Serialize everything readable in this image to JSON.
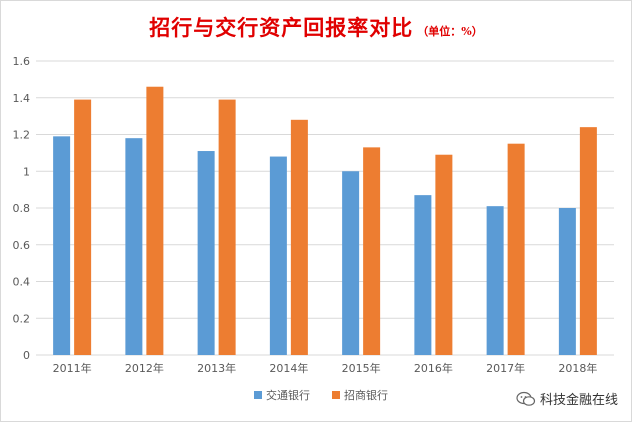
{
  "title": "招行与交行资产回报率对比",
  "unit_note": "（单位：%）",
  "watermark": "科技金融在线",
  "colors": {
    "series1": "#5b9bd5",
    "series2": "#ed7d31",
    "grid": "#d9d9d9",
    "axis_text": "#595959",
    "title": "#e00000"
  },
  "chart_data": {
    "type": "bar",
    "title": "招行与交行资产回报率对比",
    "xlabel": "",
    "ylabel": "",
    "categories": [
      "2011年",
      "2012年",
      "2013年",
      "2014年",
      "2015年",
      "2016年",
      "2017年",
      "2018年"
    ],
    "series": [
      {
        "name": "交通银行",
        "values": [
          1.19,
          1.18,
          1.11,
          1.08,
          1.0,
          0.87,
          0.81,
          0.8
        ]
      },
      {
        "name": "招商银行",
        "values": [
          1.39,
          1.46,
          1.39,
          1.28,
          1.13,
          1.09,
          1.15,
          1.24
        ]
      }
    ],
    "ylim": [
      0,
      1.6
    ],
    "yticks": [
      "0",
      "0.2",
      "0.4",
      "0.6",
      "0.8",
      "1",
      "1.2",
      "1.4",
      "1.6"
    ],
    "grid": true,
    "legend": "bottom"
  }
}
